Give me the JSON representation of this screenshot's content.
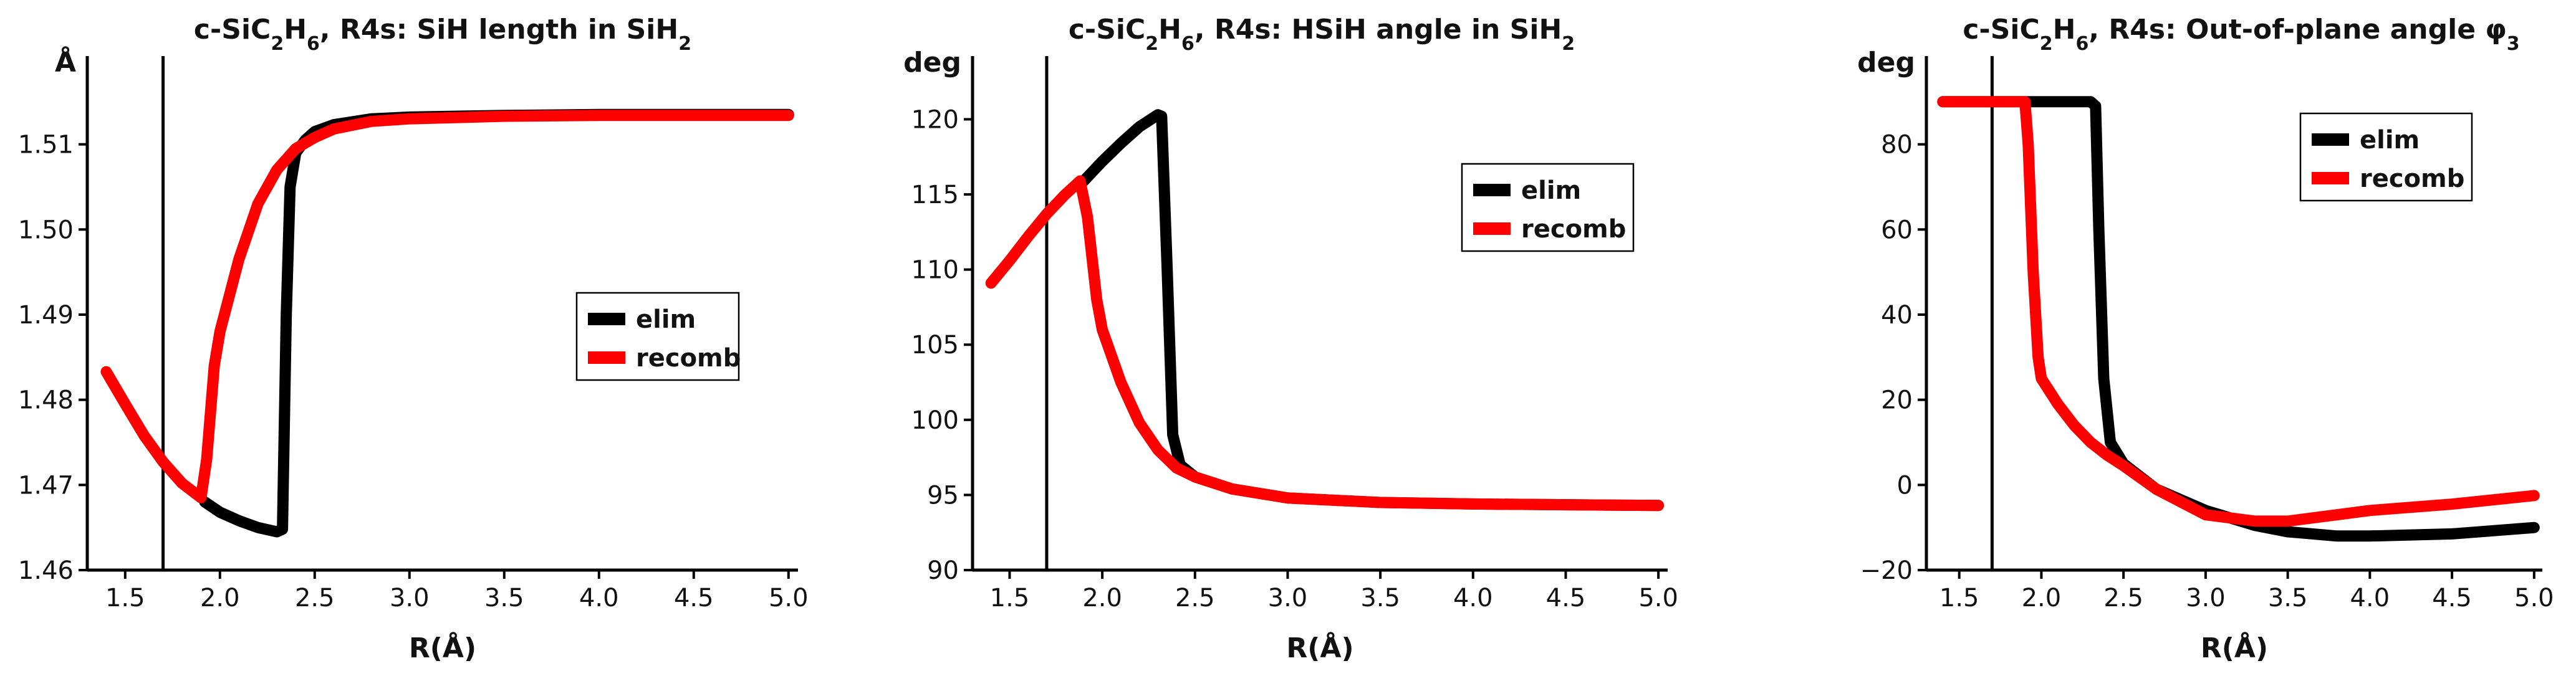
{
  "chart_data": [
    {
      "type": "line",
      "title": "c-SiC₂H₆, R4s: SiH length in SiH₂",
      "ylabel": "Å",
      "xlabel": "R(Å)",
      "xlim": [
        1.3,
        5.05
      ],
      "ylim": [
        1.46,
        1.52
      ],
      "xticks": [
        1.5,
        2.0,
        2.5,
        3.0,
        3.5,
        4.0,
        4.5,
        5.0
      ],
      "xtick_labels": [
        "1.5",
        "2.0",
        "2.5",
        "3.0",
        "3.5",
        "4.0",
        "4.5",
        "5.0"
      ],
      "yticks": [
        1.46,
        1.47,
        1.48,
        1.49,
        1.5,
        1.51
      ],
      "ytick_labels": [
        "1.46",
        "1.47",
        "1.48",
        "1.49",
        "1.50",
        "1.51"
      ],
      "vline_x": 1.7,
      "legend_position": "right",
      "series": [
        {
          "name": "elim",
          "color": "#000000",
          "x": [
            1.92,
            2.0,
            2.1,
            2.2,
            2.3,
            2.33,
            2.35,
            2.37,
            2.4,
            2.45,
            2.5,
            2.6,
            2.8,
            3.0,
            3.5,
            4.0,
            5.0
          ],
          "y": [
            1.468,
            1.4668,
            1.4658,
            1.465,
            1.4645,
            1.4648,
            1.49,
            1.505,
            1.509,
            1.5105,
            1.5115,
            1.5123,
            1.513,
            1.5132,
            1.5134,
            1.5135,
            1.5135
          ]
        },
        {
          "name": "recomb",
          "color": "#ff0000",
          "x": [
            1.4,
            1.5,
            1.6,
            1.7,
            1.8,
            1.9,
            1.93,
            1.97,
            2.0,
            2.1,
            2.2,
            2.3,
            2.4,
            2.5,
            2.6,
            2.8,
            3.0,
            3.5,
            4.0,
            5.0
          ],
          "y": [
            1.4833,
            1.4795,
            1.4758,
            1.4727,
            1.4702,
            1.4685,
            1.473,
            1.484,
            1.488,
            1.4965,
            1.503,
            1.507,
            1.5095,
            1.5108,
            1.5118,
            1.5127,
            1.513,
            1.5133,
            1.5134,
            1.5134
          ]
        }
      ]
    },
    {
      "type": "line",
      "title": "c-SiC₂H₆, R4s: HSiH angle in SiH₂",
      "ylabel": "deg",
      "xlabel": "R(Å)",
      "xlim": [
        1.3,
        5.05
      ],
      "ylim": [
        90,
        124
      ],
      "xticks": [
        1.5,
        2.0,
        2.5,
        3.0,
        3.5,
        4.0,
        4.5,
        5.0
      ],
      "xtick_labels": [
        "1.5",
        "2.0",
        "2.5",
        "3.0",
        "3.5",
        "4.0",
        "4.5",
        "5.0"
      ],
      "yticks": [
        90,
        95,
        100,
        105,
        110,
        115,
        120
      ],
      "ytick_labels": [
        "90",
        "95",
        "100",
        "105",
        "110",
        "115",
        "120"
      ],
      "vline_x": 1.7,
      "legend_position": "top-right",
      "series": [
        {
          "name": "elim",
          "color": "#000000",
          "x": [
            1.9,
            2.0,
            2.1,
            2.2,
            2.3,
            2.32,
            2.35,
            2.38,
            2.42,
            2.5,
            2.7,
            3.0,
            3.5,
            4.0,
            5.0
          ],
          "y": [
            115.9,
            117.2,
            118.4,
            119.5,
            120.3,
            120.2,
            110.0,
            99.0,
            97.0,
            96.2,
            95.4,
            94.8,
            94.5,
            94.4,
            94.3
          ]
        },
        {
          "name": "recomb",
          "color": "#ff0000",
          "x": [
            1.4,
            1.5,
            1.6,
            1.7,
            1.8,
            1.88,
            1.92,
            1.97,
            2.0,
            2.1,
            2.2,
            2.3,
            2.4,
            2.5,
            2.7,
            3.0,
            3.5,
            4.0,
            5.0
          ],
          "y": [
            109.1,
            110.6,
            112.2,
            113.7,
            115.0,
            115.9,
            113.5,
            108.0,
            106.0,
            102.5,
            99.8,
            98.0,
            96.8,
            96.2,
            95.4,
            94.8,
            94.5,
            94.4,
            94.3
          ]
        }
      ]
    },
    {
      "type": "line",
      "title": "c-SiC₂H₆, R4s: Out-of-plane angle φ₃",
      "ylabel": "deg",
      "xlabel": "R(Å)",
      "xlim": [
        1.3,
        5.05
      ],
      "ylim": [
        -20,
        100
      ],
      "xticks": [
        1.5,
        2.0,
        2.5,
        3.0,
        3.5,
        4.0,
        4.5,
        5.0
      ],
      "xtick_labels": [
        "1.5",
        "2.0",
        "2.5",
        "3.0",
        "3.5",
        "4.0",
        "4.5",
        "5.0"
      ],
      "yticks": [
        -20,
        0,
        20,
        40,
        60,
        80
      ],
      "ytick_labels": [
        "−20",
        "0",
        "20",
        "40",
        "60",
        "80"
      ],
      "vline_x": 1.7,
      "legend_position": "top-right",
      "series": [
        {
          "name": "elim",
          "color": "#000000",
          "x": [
            1.4,
            1.6,
            1.8,
            2.0,
            2.2,
            2.3,
            2.33,
            2.35,
            2.38,
            2.42,
            2.5,
            2.7,
            3.0,
            3.3,
            3.5,
            3.8,
            4.0,
            4.5,
            5.0
          ],
          "y": [
            90,
            90,
            90,
            90,
            90,
            90,
            89,
            60,
            25,
            10,
            5,
            -1,
            -6,
            -9.5,
            -11,
            -12,
            -12,
            -11.5,
            -10
          ]
        },
        {
          "name": "recomb",
          "color": "#ff0000",
          "x": [
            1.4,
            1.6,
            1.8,
            1.9,
            1.92,
            1.95,
            1.98,
            2.0,
            2.1,
            2.2,
            2.3,
            2.4,
            2.5,
            2.7,
            3.0,
            3.3,
            3.5,
            3.8,
            4.0,
            4.5,
            5.0
          ],
          "y": [
            90,
            90,
            90,
            90,
            80,
            50,
            30,
            25,
            19,
            14,
            10,
            7,
            4.5,
            -1,
            -7,
            -8.5,
            -8.5,
            -7,
            -6,
            -4.5,
            -2.5
          ]
        }
      ]
    }
  ]
}
